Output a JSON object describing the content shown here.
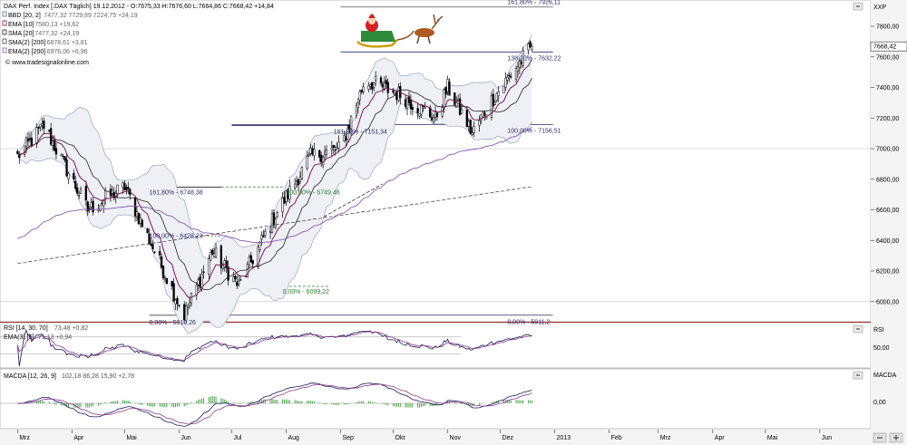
{
  "header": {
    "title": "DAX Perf. Index [.DAX Täglich] 19.12.2012 - O:7675,33 H:7676,60 L:7664,86 C:7668,42 +14,84",
    "indicators": [
      {
        "label": "BBD [20, 2]",
        "values": "7477,32 7729,89 7224,75 +24,19",
        "color": "#5a6e9a"
      },
      {
        "label": "EMA [10]",
        "values": "7580,13 +19,62",
        "color": "#7a1a5a"
      },
      {
        "label": "SMA [20]",
        "values": "7477,32 +24,19",
        "color": "#222222"
      },
      {
        "label": "SMA(2) [200]",
        "values": "6878,61 +3,81",
        "color": "#4a4a4a"
      },
      {
        "label": "EMA(2) [200]",
        "values": "6976,06 +6,96",
        "color": "#8a5ab0"
      }
    ],
    "watermark": "© www.tradesignalonline.com"
  },
  "price_axis": {
    "unit_label": "XXP",
    "ticks": [
      "7800,00",
      "7600,00",
      "7400,00",
      "7200,00",
      "7000,00",
      "6800,00",
      "6600,00",
      "6400,00",
      "6200,00",
      "6000,00"
    ],
    "last_price": "7668,42"
  },
  "rsi_panel": {
    "label": "RSI [14, 30, 70]",
    "values": "73,48 +0,82",
    "ema_label": "EMA(3) [6]",
    "ema_values": "71,13 +0,94",
    "axis_label": "RSI",
    "tick": "50,00"
  },
  "macd_panel": {
    "label": "MACDA [12, 26, 9]",
    "values": "102,18 86,28 15,90 +2,78",
    "axis_label": "MACDA",
    "tick": "0,00"
  },
  "time_axis": {
    "months": [
      "Mrz",
      "Apr",
      "Mai",
      "Jun",
      "Jul",
      "Aug",
      "Sep",
      "Okt",
      "Nov",
      "Dez",
      "2013",
      "Feb",
      "Mrz",
      "Apr",
      "Mai",
      "Jun"
    ]
  },
  "fibonacci": [
    {
      "label": "161,80% - 7926,11"
    },
    {
      "label": "138,20% - 7632,22"
    },
    {
      "label": "100,00% - 7156,51"
    },
    {
      "label": "161,80% - 7151,34"
    },
    {
      "label": "161,80% - 6748,38"
    },
    {
      "label": "100,00% - 6749,48"
    },
    {
      "label": "100,00% - 6428,23"
    },
    {
      "label": "0,00% - 6099,22"
    },
    {
      "label": "0,00% - 5910,26"
    },
    {
      "label": "0,00% - 5911,2"
    }
  ],
  "chart_data": {
    "type": "candlestick",
    "title": "DAX Perf. Index [.DAX Täglich]",
    "xlabel": "",
    "ylabel": "",
    "ylim": [
      5880,
      7960
    ],
    "x_range": [
      "2012-02-20",
      "2013-06-30"
    ],
    "key_points": [
      {
        "date": "2012-03-01",
        "value": 6950
      },
      {
        "date": "2012-03-16",
        "value": 7150
      },
      {
        "date": "2012-04-10",
        "value": 6600
      },
      {
        "date": "2012-05-01",
        "value": 6750
      },
      {
        "date": "2012-06-04",
        "value": 5910
      },
      {
        "date": "2012-06-20",
        "value": 6330
      },
      {
        "date": "2012-07-05",
        "value": 6100
      },
      {
        "date": "2012-07-25",
        "value": 6550
      },
      {
        "date": "2012-08-15",
        "value": 6950
      },
      {
        "date": "2012-09-01",
        "value": 7000
      },
      {
        "date": "2012-09-15",
        "value": 7450
      },
      {
        "date": "2012-10-05",
        "value": 7350
      },
      {
        "date": "2012-10-25",
        "value": 7200
      },
      {
        "date": "2012-11-01",
        "value": 7400
      },
      {
        "date": "2012-11-15",
        "value": 7100
      },
      {
        "date": "2012-11-25",
        "value": 7300
      },
      {
        "date": "2012-12-19",
        "value": 7668.42
      }
    ],
    "fib_levels": [
      7926.11,
      7632.22,
      7156.51,
      7151.34,
      6748.38,
      6749.48,
      6428.23,
      6099.22,
      5910.26,
      5911.2
    ],
    "rsi": {
      "ylim": [
        0,
        100
      ],
      "current": 73.48,
      "ema": 71.13
    },
    "macd": {
      "current": 102.18,
      "signal": 86.28,
      "histogram": 15.9
    }
  }
}
